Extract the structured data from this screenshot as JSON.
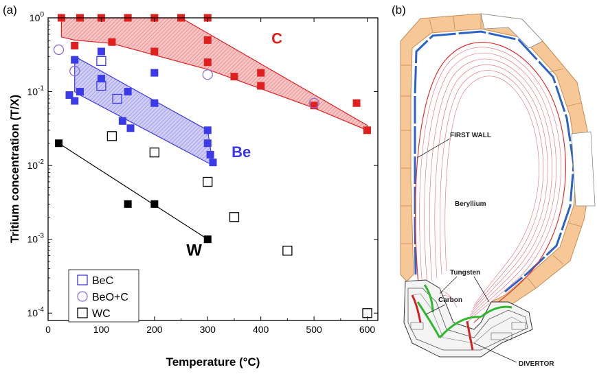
{
  "panel_a_label": "(a)",
  "panel_b_label": "(b)",
  "colors": {
    "C": "#e0201e",
    "BeC": "#3a3ae8",
    "BeOC": "#8a6fd6",
    "WC": "#000000",
    "C_band": "#f3b3b3",
    "Be_band": "#b9b6ee",
    "wall_tile": "#f6c898",
    "wall_blue": "#2a62c8",
    "field_line": "#e87a8a",
    "divertor_green": "#2eb82e",
    "divertor_red": "#d42020"
  },
  "chart_data": {
    "type": "scatter",
    "xlabel": "Temperature (°C)",
    "ylabel": "Tritium concentration (T/X)",
    "xlim": [
      0,
      620
    ],
    "ylim_log10": [
      -4.1,
      0
    ],
    "x_scale": "linear",
    "y_scale": "log",
    "x_ticks": [
      0,
      100,
      200,
      300,
      400,
      500,
      600
    ],
    "y_ticks": [
      {
        "base": "10",
        "exp": "0",
        "log": 0
      },
      {
        "base": "10",
        "exp": "-1",
        "log": -1
      },
      {
        "base": "10",
        "exp": "-2",
        "log": -2
      },
      {
        "base": "10",
        "exp": "-3",
        "log": -3
      },
      {
        "base": "10",
        "exp": "-4",
        "log": -4
      }
    ],
    "legend_position": "bottom-left",
    "series": [
      {
        "name": "C",
        "marker": "filled-square",
        "color_key": "C",
        "points": [
          [
            25,
            1.0
          ],
          [
            60,
            1.0
          ],
          [
            100,
            1.0
          ],
          [
            150,
            1.0
          ],
          [
            200,
            1.0
          ],
          [
            250,
            1.0
          ],
          [
            300,
            1.0
          ],
          [
            50,
            0.42
          ],
          [
            120,
            0.47
          ],
          [
            200,
            0.35
          ],
          [
            300,
            0.5
          ],
          [
            300,
            0.25
          ],
          [
            350,
            0.16
          ],
          [
            400,
            0.18
          ],
          [
            400,
            0.12
          ],
          [
            500,
            0.065
          ],
          [
            580,
            0.07
          ],
          [
            600,
            0.03
          ]
        ]
      },
      {
        "name": "Be",
        "marker": "filled-square",
        "color_key": "BeC",
        "points": [
          [
            50,
            0.27
          ],
          [
            100,
            0.35
          ],
          [
            40,
            0.09
          ],
          [
            50,
            0.075
          ],
          [
            60,
            0.1
          ],
          [
            100,
            0.15
          ],
          [
            150,
            0.1
          ],
          [
            140,
            0.04
          ],
          [
            155,
            0.032
          ],
          [
            200,
            0.18
          ],
          [
            200,
            0.07
          ],
          [
            300,
            0.03
          ],
          [
            300,
            0.02
          ],
          [
            305,
            0.014
          ],
          [
            310,
            0.011
          ]
        ]
      },
      {
        "name": "BeC",
        "marker": "open-square",
        "color_key": "BeC",
        "points": [
          [
            100,
            0.26
          ],
          [
            100,
            0.12
          ],
          [
            130,
            0.08
          ]
        ]
      },
      {
        "name": "BeO+C",
        "marker": "open-circle",
        "color_key": "BeOC",
        "points": [
          [
            20,
            0.37
          ],
          [
            50,
            0.19
          ],
          [
            300,
            0.17
          ],
          [
            500,
            0.07
          ]
        ]
      },
      {
        "name": "W",
        "marker": "filled-square",
        "color_key": "WC",
        "points": [
          [
            20,
            0.02
          ],
          [
            150,
            0.003
          ],
          [
            200,
            0.003
          ],
          [
            300,
            0.001
          ]
        ]
      },
      {
        "name": "WC",
        "marker": "open-square",
        "color_key": "WC",
        "points": [
          [
            120,
            0.025
          ],
          [
            200,
            0.015
          ],
          [
            300,
            0.006
          ],
          [
            350,
            0.002
          ],
          [
            450,
            0.0007
          ],
          [
            600,
            0.0001
          ]
        ]
      }
    ],
    "bands": [
      {
        "name": "C",
        "color_key": "C_band",
        "edge_key": "C",
        "polygon": [
          [
            25,
            1.0
          ],
          [
            250,
            1.0
          ],
          [
            600,
            0.035
          ],
          [
            600,
            0.03
          ],
          [
            500,
            0.06
          ],
          [
            300,
            0.2
          ],
          [
            120,
            0.45
          ],
          [
            50,
            0.5
          ],
          [
            25,
            0.55
          ]
        ]
      },
      {
        "name": "Be",
        "color_key": "Be_band",
        "edge_key": "BeC",
        "polygon": [
          [
            50,
            0.3
          ],
          [
            300,
            0.03
          ],
          [
            310,
            0.01
          ],
          [
            60,
            0.09
          ],
          [
            50,
            0.1
          ]
        ]
      }
    ],
    "fit_lines": [
      {
        "name": "W",
        "color_key": "WC",
        "points": [
          [
            20,
            0.02
          ],
          [
            300,
            0.001
          ]
        ]
      }
    ],
    "annotations": [
      {
        "text": "C",
        "x": 420,
        "y": 0.45,
        "color_key": "C",
        "size": 22
      },
      {
        "text": "Be",
        "x": 345,
        "y": 0.013,
        "color_key": "BeC",
        "size": 22
      },
      {
        "text": "W",
        "x": 260,
        "y": 0.0006,
        "color_key": "WC",
        "size": 24
      }
    ],
    "legend": [
      {
        "label": "BeC",
        "marker": "open-square",
        "color_key": "BeC"
      },
      {
        "label": "BeO+C",
        "marker": "open-circle",
        "color_key": "BeOC"
      },
      {
        "label": "WC",
        "marker": "open-square",
        "color_key": "WC"
      }
    ]
  },
  "diagram": {
    "labels": {
      "first_wall": "FIRST WALL",
      "beryllium": "Beryllium",
      "tungsten": "Tungsten",
      "carbon": "Carbon",
      "divertor": "DIVERTOR"
    }
  }
}
